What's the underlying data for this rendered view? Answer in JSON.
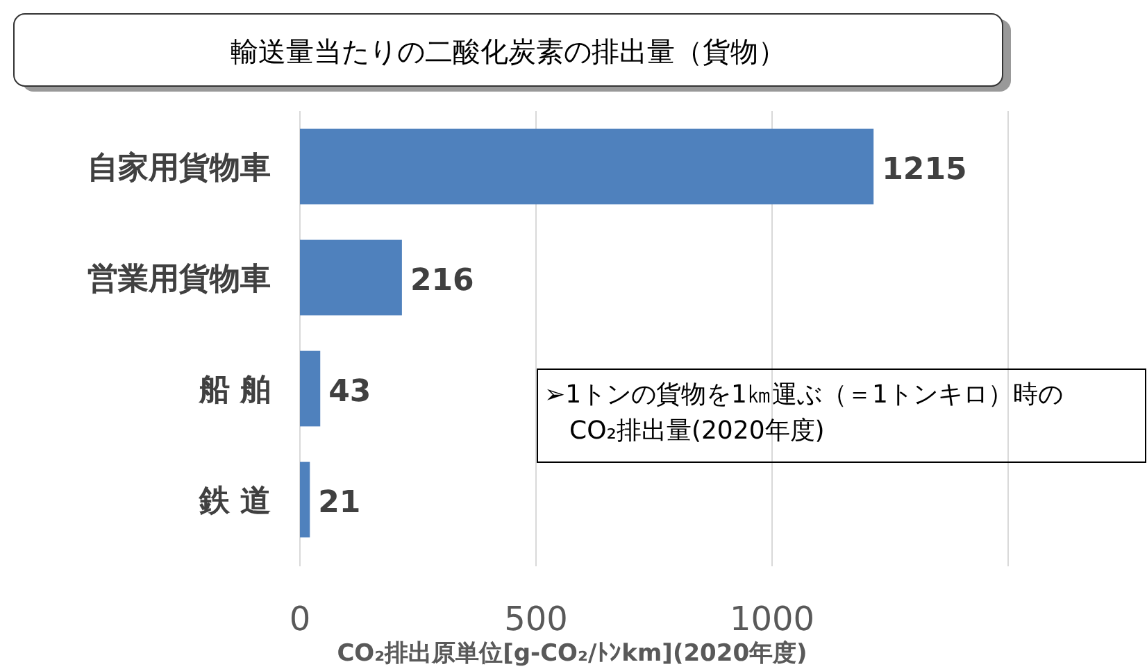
{
  "chart_data": {
    "type": "bar",
    "orientation": "horizontal",
    "title": "輸送量当たりの二酸化炭素の排出量（貨物）",
    "categories": [
      "自家用貨物車",
      "営業用貨物車",
      "船 舶",
      "鉄 道"
    ],
    "values": [
      1215,
      216,
      43,
      21
    ],
    "color": "#4f81bd",
    "data_labels": true,
    "xlim": [
      0,
      1800
    ],
    "xticks": [
      0,
      500,
      1000,
      {
        "value": 1500,
        "label": null
      }
    ],
    "grid": "x",
    "xlabel": "CO₂排出原単位[g-CO₂/ﾄﾝkm](2020年度)",
    "annotations": [
      "➢1トンの貨物を1㎞運ぶ（＝1トンキロ）時のCO₂排出量(2020年度)"
    ]
  }
}
